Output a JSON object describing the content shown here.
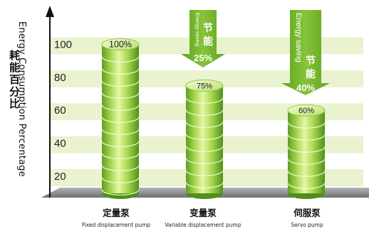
{
  "chart_data": {
    "type": "bar",
    "ylabel_en": "Energy Consumption Percentage",
    "ylabel_cn": "耗能百分比",
    "yticks": [
      100,
      80,
      60,
      40,
      20
    ],
    "ylim": [
      0,
      100
    ],
    "grid": true,
    "categories": [
      {
        "cn": "定量泵",
        "en": "Fixed displacement pump"
      },
      {
        "cn": "变量泵",
        "en": "Variable displacement pump"
      },
      {
        "cn": "伺服泵",
        "en": "Servo pump"
      }
    ],
    "values": [
      100,
      75,
      60
    ],
    "value_labels": [
      "100%",
      "75%",
      "60%"
    ],
    "savings": [
      null,
      {
        "en": "Energy saving",
        "cn": "节能",
        "pct": "25%"
      },
      {
        "en": "Energy saving",
        "cn": "节能",
        "pct": "40%"
      }
    ]
  },
  "colors": {
    "bar_light": "#d8f08a",
    "bar_main": "#8cc63f",
    "bar_dark": "#4f8f1a",
    "arrow": "#76b82a",
    "stripe": "#e2efc0",
    "floor": "#8a8a8a"
  }
}
